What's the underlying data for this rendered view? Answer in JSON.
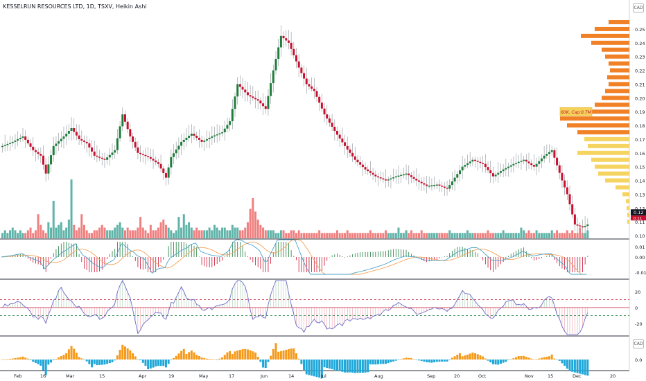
{
  "header": {
    "title": "KESSELRUN RESOURCES LTD, 1D, TSXV, Heikin Ashi"
  },
  "badges": {
    "currency": "CAD"
  },
  "colors": {
    "up": "#1e7d3c",
    "down": "#c8102e",
    "vol_up": "#5fb3a8",
    "vol_down": "#f08080",
    "vp_orange": "#f07a1a",
    "vp_yellow": "#f5d25a",
    "macd_signal": "#f5a25a",
    "macd_line": "#4aa3c8",
    "osc_line": "#6c6cc8",
    "hist_blue": "#1ea7d8",
    "hist_orange": "#f59a1a",
    "price_tag": "#c8102e"
  },
  "chart_data": {
    "type": "candlestick",
    "price_axis": {
      "ticks": [
        "0.25",
        "0.24",
        "0.23",
        "0.22",
        "0.21",
        "0.20",
        "0.19",
        "0.18",
        "0.17",
        "0.16",
        "0.15",
        "0.14",
        "0.13",
        "0.12",
        "0.11",
        "0.10"
      ],
      "ylim": [
        0.1,
        0.26
      ]
    },
    "last_price": "0.12",
    "last_price_sub": "0.11",
    "poc_label": "60K, Cap:0.7M",
    "x_labels": [
      "Feb",
      "16",
      "Mar",
      "15",
      "Apr",
      "19",
      "May",
      "17",
      "Jun",
      "14",
      "Jul",
      "Aug",
      "Sep",
      "20",
      "Oct",
      "Nov",
      "15",
      "Dec",
      "20"
    ],
    "macd_axis": {
      "ticks": [
        "0.01",
        "0.00",
        "-0.01"
      ]
    },
    "osc_axis": {
      "ticks": [
        "20",
        "0",
        "-20"
      ],
      "levels": [
        10,
        -10
      ]
    },
    "hist_axis": {
      "ticks": [
        "0.0"
      ]
    },
    "price_anchors": [
      [
        0,
        0.165
      ],
      [
        4,
        0.168
      ],
      [
        8,
        0.172
      ],
      [
        12,
        0.162
      ],
      [
        15,
        0.158
      ],
      [
        17,
        0.145
      ],
      [
        20,
        0.165
      ],
      [
        24,
        0.172
      ],
      [
        27,
        0.178
      ],
      [
        30,
        0.17
      ],
      [
        33,
        0.167
      ],
      [
        36,
        0.158
      ],
      [
        40,
        0.155
      ],
      [
        44,
        0.162
      ],
      [
        47,
        0.188
      ],
      [
        50,
        0.172
      ],
      [
        53,
        0.16
      ],
      [
        57,
        0.157
      ],
      [
        61,
        0.152
      ],
      [
        64,
        0.142
      ],
      [
        66,
        0.157
      ],
      [
        70,
        0.168
      ],
      [
        74,
        0.174
      ],
      [
        78,
        0.168
      ],
      [
        82,
        0.172
      ],
      [
        86,
        0.175
      ],
      [
        89,
        0.183
      ],
      [
        92,
        0.21
      ],
      [
        96,
        0.202
      ],
      [
        100,
        0.198
      ],
      [
        103,
        0.192
      ],
      [
        106,
        0.22
      ],
      [
        109,
        0.245
      ],
      [
        112,
        0.24
      ],
      [
        116,
        0.222
      ],
      [
        119,
        0.21
      ],
      [
        122,
        0.205
      ],
      [
        126,
        0.188
      ],
      [
        130,
        0.176
      ],
      [
        134,
        0.165
      ],
      [
        138,
        0.155
      ],
      [
        142,
        0.148
      ],
      [
        146,
        0.143
      ],
      [
        150,
        0.14
      ],
      [
        154,
        0.143
      ],
      [
        158,
        0.145
      ],
      [
        162,
        0.14
      ],
      [
        166,
        0.136
      ],
      [
        170,
        0.137
      ],
      [
        174,
        0.134
      ],
      [
        177,
        0.142
      ],
      [
        180,
        0.15
      ],
      [
        184,
        0.155
      ],
      [
        188,
        0.152
      ],
      [
        192,
        0.143
      ],
      [
        196,
        0.148
      ],
      [
        200,
        0.152
      ],
      [
        204,
        0.155
      ],
      [
        208,
        0.15
      ],
      [
        212,
        0.158
      ],
      [
        215,
        0.162
      ],
      [
        219,
        0.14
      ],
      [
        221,
        0.13
      ],
      [
        224,
        0.108
      ],
      [
        227,
        0.106
      ],
      [
        229,
        0.108
      ]
    ],
    "volume_series": [
      2,
      3,
      2,
      3,
      4,
      3,
      2,
      3,
      2,
      2,
      3,
      4,
      2,
      3,
      9,
      5,
      3,
      2,
      6,
      4,
      14,
      4,
      5,
      6,
      3,
      4,
      7,
      22,
      5,
      3,
      4,
      9,
      5,
      3,
      2,
      2,
      3,
      3,
      4,
      5,
      4,
      3,
      3,
      3,
      4,
      5,
      6,
      4,
      3,
      4,
      3,
      3,
      3,
      4,
      8,
      4,
      3,
      2,
      5,
      3,
      3,
      4,
      6,
      7,
      5,
      4,
      3,
      2,
      3,
      8,
      4,
      9,
      5,
      6,
      4,
      3,
      4,
      3,
      3,
      3,
      3,
      4,
      3,
      5,
      4,
      3,
      4,
      4,
      3,
      3,
      5,
      4,
      4,
      3,
      3,
      4,
      6,
      11,
      15,
      10,
      7,
      5,
      4,
      3,
      3,
      3,
      3,
      2,
      2,
      3,
      3,
      2,
      2,
      3,
      3,
      2,
      3,
      2,
      2,
      2,
      2,
      2,
      2,
      2,
      3,
      2,
      2,
      2,
      2,
      2,
      2,
      3,
      2,
      2,
      2,
      3,
      2,
      2,
      2,
      2,
      2,
      2,
      2,
      2,
      3,
      2,
      2,
      2,
      2,
      2,
      3,
      2,
      2,
      2,
      2,
      4,
      2,
      2,
      3,
      2,
      3,
      2,
      2,
      2,
      3,
      2,
      2,
      2,
      2,
      2,
      2,
      2,
      2,
      2,
      2,
      3,
      2,
      2,
      2,
      2,
      2,
      2,
      3,
      2,
      2,
      2,
      2,
      2,
      2,
      2,
      3,
      2,
      2,
      2,
      2,
      2,
      3,
      2,
      2,
      2,
      2,
      2,
      2,
      4,
      3,
      2,
      3,
      2,
      2,
      3,
      2,
      2,
      2,
      2,
      2,
      3,
      2,
      3,
      2,
      2,
      2,
      3,
      2,
      3,
      2,
      2,
      4,
      2,
      2,
      3,
      2
    ],
    "volume_profile": [
      [
        0.255,
        0.3,
        "o"
      ],
      [
        0.25,
        0.5,
        "o"
      ],
      [
        0.245,
        0.7,
        "o"
      ],
      [
        0.24,
        0.55,
        "o"
      ],
      [
        0.235,
        0.4,
        "o"
      ],
      [
        0.23,
        0.35,
        "o"
      ],
      [
        0.225,
        0.3,
        "o"
      ],
      [
        0.22,
        0.28,
        "o"
      ],
      [
        0.215,
        0.32,
        "o"
      ],
      [
        0.21,
        0.3,
        "o"
      ],
      [
        0.205,
        0.35,
        "o"
      ],
      [
        0.2,
        0.4,
        "o"
      ],
      [
        0.195,
        0.5,
        "o"
      ],
      [
        0.19,
        0.7,
        "o"
      ],
      [
        0.185,
        1.0,
        "o"
      ],
      [
        0.18,
        0.9,
        "o"
      ],
      [
        0.175,
        0.75,
        "o"
      ],
      [
        0.17,
        0.65,
        "y"
      ],
      [
        0.165,
        0.6,
        "y"
      ],
      [
        0.16,
        0.75,
        "y"
      ],
      [
        0.155,
        0.55,
        "y"
      ],
      [
        0.15,
        0.5,
        "y"
      ],
      [
        0.145,
        0.45,
        "y"
      ],
      [
        0.14,
        0.35,
        "y"
      ],
      [
        0.135,
        0.2,
        "y"
      ],
      [
        0.13,
        0.1,
        "y"
      ],
      [
        0.125,
        0.05,
        "y"
      ],
      [
        0.12,
        0.04,
        "y"
      ],
      [
        0.115,
        0.03,
        "y"
      ],
      [
        0.11,
        0.03,
        "y"
      ]
    ]
  }
}
